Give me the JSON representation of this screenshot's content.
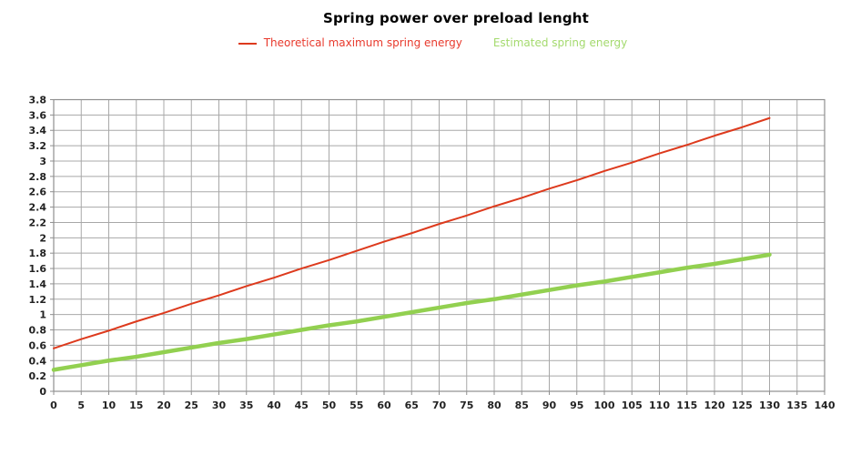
{
  "title": "Spring power over preload lenght",
  "legend": {
    "items": [
      {
        "label": "Theoretical maximum spring energy",
        "text_color": "#e8392c",
        "marker": "line",
        "marker_color": "#dd3a1d"
      },
      {
        "label": "Estimated spring energy",
        "text_color": "#a4da6e",
        "marker": "none",
        "marker_color": null
      }
    ]
  },
  "colors": {
    "background": "#ffffff",
    "grid": "#a8a8a8",
    "frame": "#8f8f8f",
    "axis_label": "#222222",
    "title": "#000000"
  },
  "chart_data": {
    "type": "line",
    "title": "Spring power over preload lenght",
    "xlabel": "",
    "ylabel": "",
    "xlim": [
      0,
      140
    ],
    "ylim": [
      0,
      3.8
    ],
    "x_tick_step": 5,
    "y_tick_step": 0.2,
    "grid": true,
    "legend_position": "top",
    "x": [
      0,
      5,
      10,
      15,
      20,
      25,
      30,
      35,
      40,
      45,
      50,
      55,
      60,
      65,
      70,
      75,
      80,
      85,
      90,
      95,
      100,
      105,
      110,
      115,
      120,
      125,
      130
    ],
    "series": [
      {
        "name": "Theoretical maximum spring energy",
        "color": "#dd3a1d",
        "stroke_width": 2,
        "values": [
          0.56,
          0.68,
          0.79,
          0.91,
          1.02,
          1.14,
          1.25,
          1.37,
          1.48,
          1.6,
          1.71,
          1.83,
          1.95,
          2.06,
          2.18,
          2.29,
          2.41,
          2.52,
          2.64,
          2.75,
          2.87,
          2.98,
          3.1,
          3.21,
          3.33,
          3.44,
          3.56
        ]
      },
      {
        "name": "Estimated spring energy",
        "color": "#92d050",
        "stroke_width": 4.5,
        "values": [
          0.28,
          0.34,
          0.4,
          0.45,
          0.51,
          0.57,
          0.63,
          0.68,
          0.74,
          0.8,
          0.86,
          0.91,
          0.97,
          1.03,
          1.09,
          1.15,
          1.2,
          1.26,
          1.32,
          1.38,
          1.43,
          1.49,
          1.55,
          1.61,
          1.66,
          1.72,
          1.78
        ]
      }
    ]
  }
}
